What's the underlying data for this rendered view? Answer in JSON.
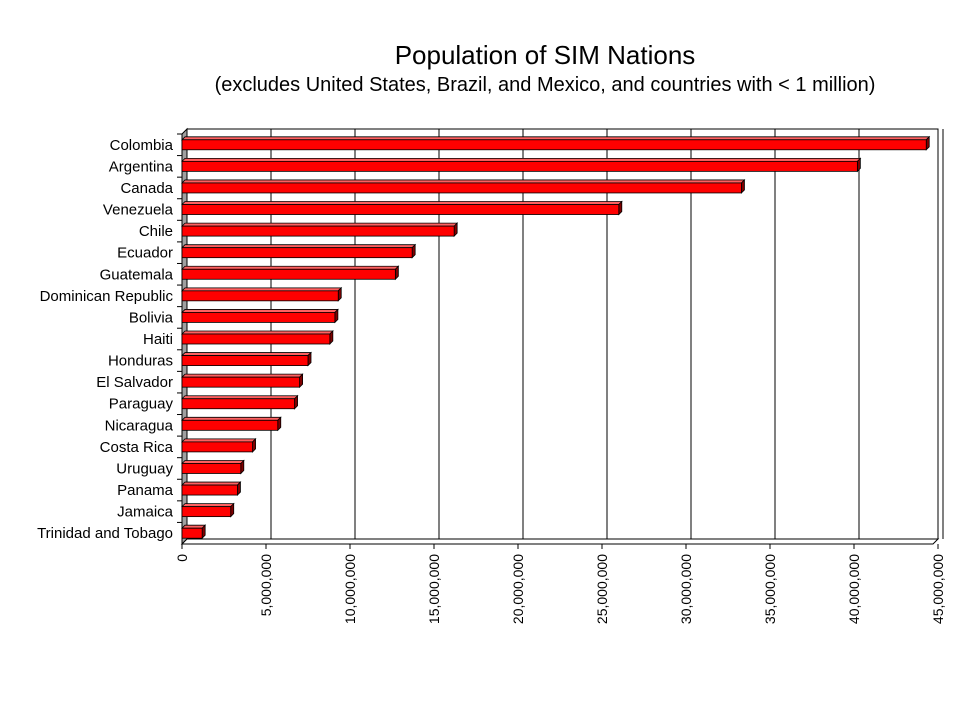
{
  "chart_data": {
    "type": "bar",
    "orientation": "horizontal",
    "title": "Population of SIM Nations",
    "subtitle": "(excludes United States, Brazil, and Mexico, and countries with < 1 million)",
    "categories": [
      "Colombia",
      "Argentina",
      "Canada",
      "Venezuela",
      "Chile",
      "Ecuador",
      "Guatemala",
      "Dominican Republic",
      "Bolivia",
      "Haiti",
      "Honduras",
      "El Salvador",
      "Paraguay",
      "Nicaragua",
      "Costa Rica",
      "Uruguay",
      "Panama",
      "Jamaica",
      "Trinidad and Tobago"
    ],
    "values": [
      44300000,
      40200000,
      33300000,
      26000000,
      16200000,
      13700000,
      12700000,
      9300000,
      9100000,
      8800000,
      7500000,
      7000000,
      6700000,
      5700000,
      4200000,
      3500000,
      3300000,
      2900000,
      1200000
    ],
    "xlim": [
      0,
      45000000
    ],
    "x_ticks": [
      0,
      5000000,
      10000000,
      15000000,
      20000000,
      25000000,
      30000000,
      35000000,
      40000000,
      45000000
    ],
    "x_tick_labels": [
      "0",
      "5,000,000",
      "10,000,000",
      "15,000,000",
      "20,000,000",
      "25,000,000",
      "30,000,000",
      "35,000,000",
      "40,000,000",
      "45,000,000"
    ],
    "xlabel": "",
    "ylabel": "",
    "grid": "vertical",
    "legend": "none",
    "bar_color": "#ff0000"
  }
}
